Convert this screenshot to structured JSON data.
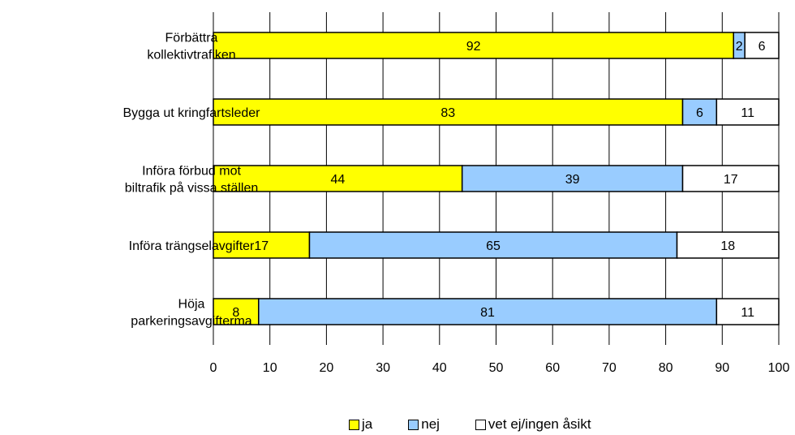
{
  "chart_data": {
    "type": "bar",
    "orientation": "horizontal",
    "stacked": true,
    "categories": [
      [
        "Förbättra",
        "kollektivtrafiken"
      ],
      [
        "Bygga ut kringfartsleder"
      ],
      [
        "Införa förbud mot",
        "biltrafik på vissa ställen"
      ],
      [
        "Införa trängselavgifter"
      ],
      [
        "Höja",
        "parkeringsavgifterma"
      ]
    ],
    "series": [
      {
        "name": "ja",
        "color": "#ffff00",
        "values": [
          92,
          83,
          44,
          17,
          8
        ]
      },
      {
        "name": "nej",
        "color": "#99ccff",
        "values": [
          2,
          6,
          39,
          65,
          81
        ]
      },
      {
        "name": "vet ej/ingen åsikt",
        "color": "#ffffff",
        "values": [
          6,
          11,
          17,
          18,
          11
        ]
      }
    ],
    "xlim": [
      0,
      100
    ],
    "xticks": [
      "0",
      "10",
      "20",
      "30",
      "40",
      "50",
      "60",
      "70",
      "80",
      "90",
      "100"
    ],
    "grid": "vertical",
    "legend_position": "bottom"
  }
}
